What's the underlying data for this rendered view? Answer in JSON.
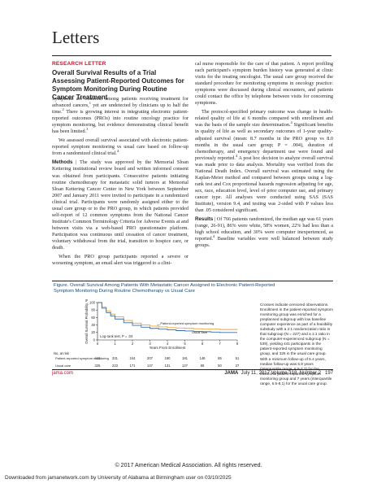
{
  "journal_section": "Letters",
  "section_label": "RESEARCH LETTER",
  "article_title": "Overall Survival Results of a Trial Assessing Patient-Reported Outcomes for Symptom Monitoring During Routine Cancer Treatment",
  "left_column": {
    "p1": "Symptoms are common among patients receiving treatment for advanced cancers,",
    "p1_sup": "1",
    "p1b": " yet are undetected by clinicians up to half the time.",
    "p1b_sup": "2",
    "p1c": " There is growing interest in integrating electronic patient-reported outcomes (PROs) into routine oncology practice for symptom monitoring, but evidence demonstrating clinical benefit has been limited.",
    "p1c_sup": "3",
    "p2": "We assessed overall survival associated with electronic patient-reported symptom monitoring vs usual care based on follow-up from a randomized clinical trial.",
    "p2_sup": "4",
    "methods_head": "Methods",
    "methods": " | The study was approved by the Memorial Sloan Kettering institutional review board and written informed consent was obtained from participants. Consecutive patients initiating routine chemotherapy for metastatic solid tumors at Memorial Sloan Kettering Cancer Center in New York between September 2007 and January 2011 were invited to participate in a randomized clinical trial. Participants were randomly assigned either to the usual care group or to the PRO group, in which patients provided self-report of 12 common symptoms from the National Cancer Institute's Common Terminology Criteria for Adverse Events at and between visits via a web-based PRO questionnaire platform. Participation was continuous until cessation of cancer treatment, voluntary withdrawal from the trial, transition to hospice care, or death.",
    "p4": "When the PRO group participants reported a severe or worsening symptom, an email alert was triggered to a clini-"
  },
  "right_column": {
    "p1": "cal nurse responsible for the care of that patient. A report profiling each participant's symptom burden history was generated at clinic visits for the treating oncologist. The usual care group received the standard procedure for monitoring symptoms in oncology practice: symptoms were discussed during clinical encounters, and patients could contact the office by telephone between visits for concerning symptoms.",
    "p2": "The protocol-specified primary outcome was change in health-related quality of life at 6 months compared with enrollment and was the basis of the sample size determination.",
    "p2_sup": "4",
    "p2b": " Significant benefits in quality of life as well as secondary outcomes of 1-year quality-adjusted survival (mean: 8.7 months in the PRO group vs 8.0 months in the usual care group; P = .004), duration of chemotherapy, and emergency department use were found and previously reported.",
    "p2b_sup": "4",
    "p2c": " A post hoc decision to analyze overall survival was made prior to data analysis. Mortality was verified from the National Death Index. Overall survival was estimated using the Kaplan-Meier method and compared between groups using a log-rank test and Cox proportional hazards regression adjusting for age, sex, race, education level, level of prior computer use, and primary cancer type. All analyses were conducted using SAS (SAS Institute), version 9.4, and testing was 2-sided with P values less than .05 considered significant.",
    "results_head": "Results",
    "results": " | Of 766 patients randomized, the median age was 61 years (range, 26-91), 86% were white, 58% women, 22% had less than a high school education, and 30% were computer inexperienced, as reported.",
    "results_sup": "4",
    "results_b": " Baseline variables were well balanced between study groups."
  },
  "figure": {
    "title": "Figure. Overall Survival Among Patients With Metastatic Cancer Assigned to Electronic Patient-Reported Symptom Monitoring During Routine Chemotherapy vs Usual Care",
    "note": "Crosses indicate censored observations. Enrollment in the patient-reported symptom monitoring group was enriched for a preplanned subgroup with low baseline computer experience as part of a feasibility substudy with a 2:1 randomization ratio in that subgroup (N = 227) and a 1:1 ratio in the computer-experienced subgroup (N = 539), yielding 441 participants in the patient-reported symptom monitoring group, and 325 in the usual care group. With a minimum follow-up of 5.4 years, median follow-up was 6.9 years (interquartile range, 6.5-7.7) for the electronic patient-reported symptom monitoring group and 7 years (interquartile range, 6.6-8.1) for the usual care group."
  },
  "chart_data": {
    "type": "line",
    "title": "",
    "xlabel": "Years From Enrollment",
    "ylabel": "Overall Survival Probability, %",
    "xlim": [
      0,
      8
    ],
    "ylim": [
      0,
      100
    ],
    "x_ticks": [
      "0",
      "1",
      "2",
      "3",
      "4",
      "5",
      "6",
      "7",
      "8"
    ],
    "y_ticks": [
      "0",
      "20",
      "40",
      "60",
      "80",
      "100"
    ],
    "annotation": "Log-rank test, P = .03",
    "series": [
      {
        "name": "Patient-reported symptom monitoring",
        "color": "#e8a33d",
        "x": [
          0,
          0.25,
          0.5,
          0.75,
          1,
          1.5,
          2,
          2.5,
          3,
          3.5,
          4,
          4.5,
          5,
          5.5,
          6,
          6.5,
          7,
          7.5,
          8
        ],
        "y": [
          100,
          88,
          77,
          69,
          62,
          52,
          45,
          40,
          37,
          35,
          33,
          32,
          31,
          30,
          29,
          29,
          28,
          28,
          27
        ]
      },
      {
        "name": "Usual care",
        "color": "#3a6ea5",
        "x": [
          0,
          0.25,
          0.5,
          0.75,
          1,
          1.5,
          2,
          2.5,
          3,
          3.5,
          4,
          4.5,
          5,
          5.5,
          6,
          6.5,
          7,
          7.5,
          8
        ],
        "y": [
          100,
          85,
          73,
          64,
          56,
          46,
          39,
          34,
          31,
          29,
          27,
          25,
          24,
          23,
          22,
          21,
          20,
          20,
          20
        ]
      }
    ],
    "risk_table": {
      "header": "No. at risk",
      "rows": [
        {
          "label": "Patient-reported symptom monitoring",
          "values": [
            "441",
            "331",
            "244",
            "207",
            "190",
            "181",
            "148",
            "85",
            "51"
          ]
        },
        {
          "label": "Usual care",
          "values": [
            "325",
            "223",
            "171",
            "147",
            "131",
            "127",
            "89",
            "50",
            "27"
          ]
        }
      ]
    }
  },
  "footer": {
    "left": "jama.com",
    "journal": "JAMA",
    "issue": "July 11, 2017   Volume 318, Number 2",
    "page": "197"
  },
  "copyright": "© 2017 American Medical Association. All rights reserved.",
  "downloaded": "Downloaded from jamanetwork.com by University of Alabama at Birmingham user on 03/10/2025"
}
